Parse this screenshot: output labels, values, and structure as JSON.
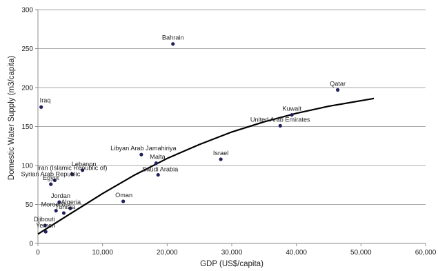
{
  "chart_data": {
    "type": "scatter",
    "title": "",
    "xlabel": "GDP (US$/capita)",
    "ylabel": "Domestic Water Supply (m3/capita)",
    "xlim": [
      0,
      60000
    ],
    "ylim": [
      0,
      300
    ],
    "x_ticks": [
      0,
      10000,
      20000,
      30000,
      40000,
      50000,
      60000
    ],
    "x_tick_labels": [
      "0",
      "10,000",
      "20,000",
      "30,000",
      "40,000",
      "50,000",
      "60,000"
    ],
    "y_ticks": [
      0,
      50,
      100,
      150,
      200,
      250,
      300
    ],
    "y_tick_labels": [
      "0",
      "50",
      "100",
      "150",
      "200",
      "250",
      "300"
    ],
    "grid": "horizontal",
    "marker_color": "#1f1f5c",
    "trend_color": "#000000",
    "points": [
      {
        "label": "Bahrain",
        "x": 20900,
        "y": 256
      },
      {
        "label": "Qatar",
        "x": 46400,
        "y": 197
      },
      {
        "label": "Iraq",
        "x": 500,
        "y": 175
      },
      {
        "label": "Kuwait",
        "x": 39300,
        "y": 165
      },
      {
        "label": "United Arab Emirates",
        "x": 37500,
        "y": 151
      },
      {
        "label": "Libyan Arab Jamahiriya",
        "x": 16000,
        "y": 114
      },
      {
        "label": "Israel",
        "x": 28300,
        "y": 108
      },
      {
        "label": "Malta",
        "x": 18300,
        "y": 103
      },
      {
        "label": "Lebanon",
        "x": 6900,
        "y": 94
      },
      {
        "label": "Iran (Islamic Republic of)",
        "x": 5300,
        "y": 89
      },
      {
        "label": "Saudi Arabia",
        "x": 18600,
        "y": 88
      },
      {
        "label": "Syrian Arab Republic",
        "x": 2600,
        "y": 81
      },
      {
        "label": "Egypt",
        "x": 2000,
        "y": 76
      },
      {
        "label": "Oman",
        "x": 13200,
        "y": 54
      },
      {
        "label": "Jordan",
        "x": 3300,
        "y": 53
      },
      {
        "label": "Algeria",
        "x": 5000,
        "y": 45
      },
      {
        "label": "Morocco",
        "x": 2800,
        "y": 42
      },
      {
        "label": "Tunisia",
        "x": 4000,
        "y": 39
      },
      {
        "label": "Djibouti",
        "x": 1100,
        "y": 23
      },
      {
        "label": "Yemen",
        "x": 1200,
        "y": 15
      }
    ],
    "trendline": {
      "type": "polynomial",
      "x": [
        0,
        5000,
        10000,
        15000,
        20000,
        25000,
        30000,
        35000,
        40000,
        45000,
        52000
      ],
      "y": [
        12,
        38,
        64,
        88,
        109,
        127,
        143,
        156,
        167,
        176,
        186
      ]
    }
  }
}
